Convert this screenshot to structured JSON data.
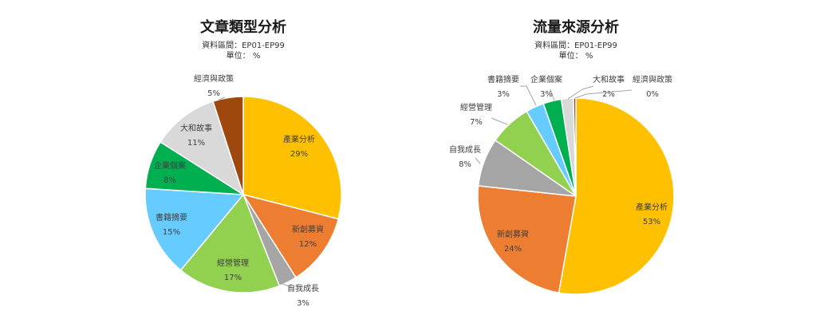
{
  "chart_data": [
    {
      "type": "pie",
      "title": "文章類型分析",
      "subtitle_range": "資料區間：EP01-EP99",
      "subtitle_unit": "單位： %",
      "slices": [
        {
          "label": "產業分析",
          "value": 29,
          "display": "29%",
          "color": "#FFC000"
        },
        {
          "label": "新創募資",
          "value": 12,
          "display": "12%",
          "color": "#ED7D31"
        },
        {
          "label": "自我成長",
          "value": 3,
          "display": "3%",
          "color": "#A5A5A5"
        },
        {
          "label": "經營管理",
          "value": 17,
          "display": "17%",
          "color": "#92D050"
        },
        {
          "label": "書籍摘要",
          "value": 15,
          "display": "15%",
          "color": "#66CCFF"
        },
        {
          "label": "企業個案",
          "value": 8,
          "display": "8%",
          "color": "#00B050"
        },
        {
          "label": "大和故事",
          "value": 11,
          "display": "11%",
          "color": "#D9D9D9"
        },
        {
          "label": "經濟與政策",
          "value": 5,
          "display": "5%",
          "color": "#9E480E"
        }
      ]
    },
    {
      "type": "pie",
      "title": "流量來源分析",
      "subtitle_range": "資料區間：EP01-EP99",
      "subtitle_unit": "單位： %",
      "slices": [
        {
          "label": "產業分析",
          "value": 53,
          "display": "53%",
          "color": "#FFC000"
        },
        {
          "label": "新創募資",
          "value": 24,
          "display": "24%",
          "color": "#ED7D31"
        },
        {
          "label": "自我成長",
          "value": 8,
          "display": "8%",
          "color": "#A5A5A5"
        },
        {
          "label": "經營管理",
          "value": 7,
          "display": "7%",
          "color": "#92D050"
        },
        {
          "label": "書籍摘要",
          "value": 3,
          "display": "3%",
          "color": "#66CCFF"
        },
        {
          "label": "企業個案",
          "value": 3,
          "display": "3%",
          "color": "#00B050"
        },
        {
          "label": "大和故事",
          "value": 2,
          "display": "2%",
          "color": "#D9D9D9"
        },
        {
          "label": "經濟與政策",
          "value": 0.4,
          "display": "0%",
          "color": "#9E480E"
        }
      ]
    }
  ]
}
